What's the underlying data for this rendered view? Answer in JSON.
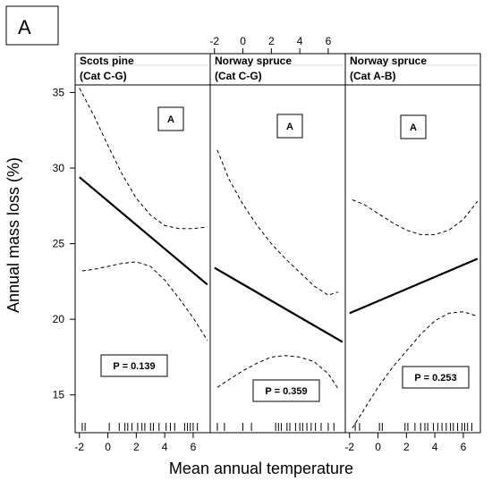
{
  "figure_label": "A",
  "chart_data": {
    "type": "line",
    "ylabel": "Annual mass loss (%)",
    "xlabel": "Mean annual temperature",
    "xlim": [
      -2.3,
      7.2
    ],
    "ylim": [
      12.5,
      35.5
    ],
    "x_ticks": [
      -2,
      0,
      2,
      4,
      6
    ],
    "y_ticks": [
      15,
      20,
      25,
      30,
      35
    ],
    "grid": false,
    "panels": [
      {
        "title_line1": "Scots pine",
        "title_line2": "(Cat C-G)",
        "group_label": "A",
        "p_label": "P = 0.139",
        "fit": {
          "x": [
            -2,
            7
          ],
          "y": [
            29.4,
            22.3
          ]
        },
        "upper": {
          "x": [
            -2,
            -1,
            0,
            1,
            2,
            3,
            4,
            5,
            6,
            7
          ],
          "y": [
            35.3,
            33.5,
            31.5,
            29.6,
            28.0,
            26.9,
            26.2,
            26.0,
            26.0,
            26.1
          ]
        },
        "lower": {
          "x": [
            -1.8,
            -1,
            0,
            1,
            2,
            3,
            4,
            5,
            6,
            7
          ],
          "y": [
            23.2,
            23.3,
            23.5,
            23.7,
            23.8,
            23.5,
            22.6,
            21.4,
            20.1,
            18.6
          ]
        },
        "rug": [
          -1.8,
          -1.6,
          0.1,
          0.8,
          1.2,
          1.4,
          1.7,
          2.1,
          2.4,
          2.6,
          3.0,
          3.2,
          3.6,
          4.1,
          4.4,
          4.7,
          5.4,
          5.6,
          5.8,
          6.0,
          6.3
        ]
      },
      {
        "title_line1": "Norway spruce",
        "title_line2": "(Cat C-G)",
        "group_label": "A",
        "p_label": "P = 0.359",
        "fit": {
          "x": [
            -2,
            7
          ],
          "y": [
            23.4,
            18.5
          ]
        },
        "upper": {
          "x": [
            -1.8,
            -1,
            0,
            1,
            2,
            3,
            4,
            5,
            6,
            6.7
          ],
          "y": [
            31.2,
            29.3,
            27.6,
            26.2,
            25.0,
            24.0,
            23.1,
            22.2,
            21.6,
            21.8
          ]
        },
        "lower": {
          "x": [
            -1.8,
            -1,
            0,
            1,
            2,
            3,
            4,
            5,
            6,
            6.7
          ],
          "y": [
            15.5,
            16.0,
            16.6,
            17.1,
            17.5,
            17.6,
            17.5,
            17.2,
            16.4,
            15.4
          ]
        },
        "rug": [
          -1.8,
          -1.3,
          0.0,
          0.6,
          2.3,
          2.5,
          2.7,
          3.1,
          3.3,
          3.7,
          4.0,
          4.2,
          4.5,
          4.8,
          5.1,
          5.5,
          6.0,
          6.4
        ]
      },
      {
        "title_line1": "Norway spruce",
        "title_line2": "(Cat A-B)",
        "group_label": "A",
        "p_label": "P = 0.253",
        "fit": {
          "x": [
            -2,
            7
          ],
          "y": [
            20.4,
            24.0
          ]
        },
        "upper": {
          "x": [
            -1.8,
            -1,
            0,
            1,
            2,
            3,
            4,
            5,
            6,
            7
          ],
          "y": [
            27.9,
            27.6,
            27.0,
            26.4,
            25.9,
            25.6,
            25.6,
            25.9,
            26.6,
            27.8
          ]
        },
        "lower": {
          "x": [
            -1.8,
            -1,
            0,
            1,
            2,
            3,
            4,
            5,
            6,
            7
          ],
          "y": [
            12.8,
            14.0,
            15.5,
            16.8,
            17.9,
            19.0,
            19.9,
            20.4,
            20.5,
            20.2
          ]
        },
        "rug": [
          -1.6,
          -1.3,
          0.1,
          0.3,
          1.9,
          2.1,
          2.6,
          3.0,
          3.3,
          3.5,
          3.9,
          4.2,
          4.5,
          4.8,
          5.1,
          5.3,
          5.6,
          5.9,
          6.1,
          6.3,
          6.6
        ]
      }
    ]
  }
}
